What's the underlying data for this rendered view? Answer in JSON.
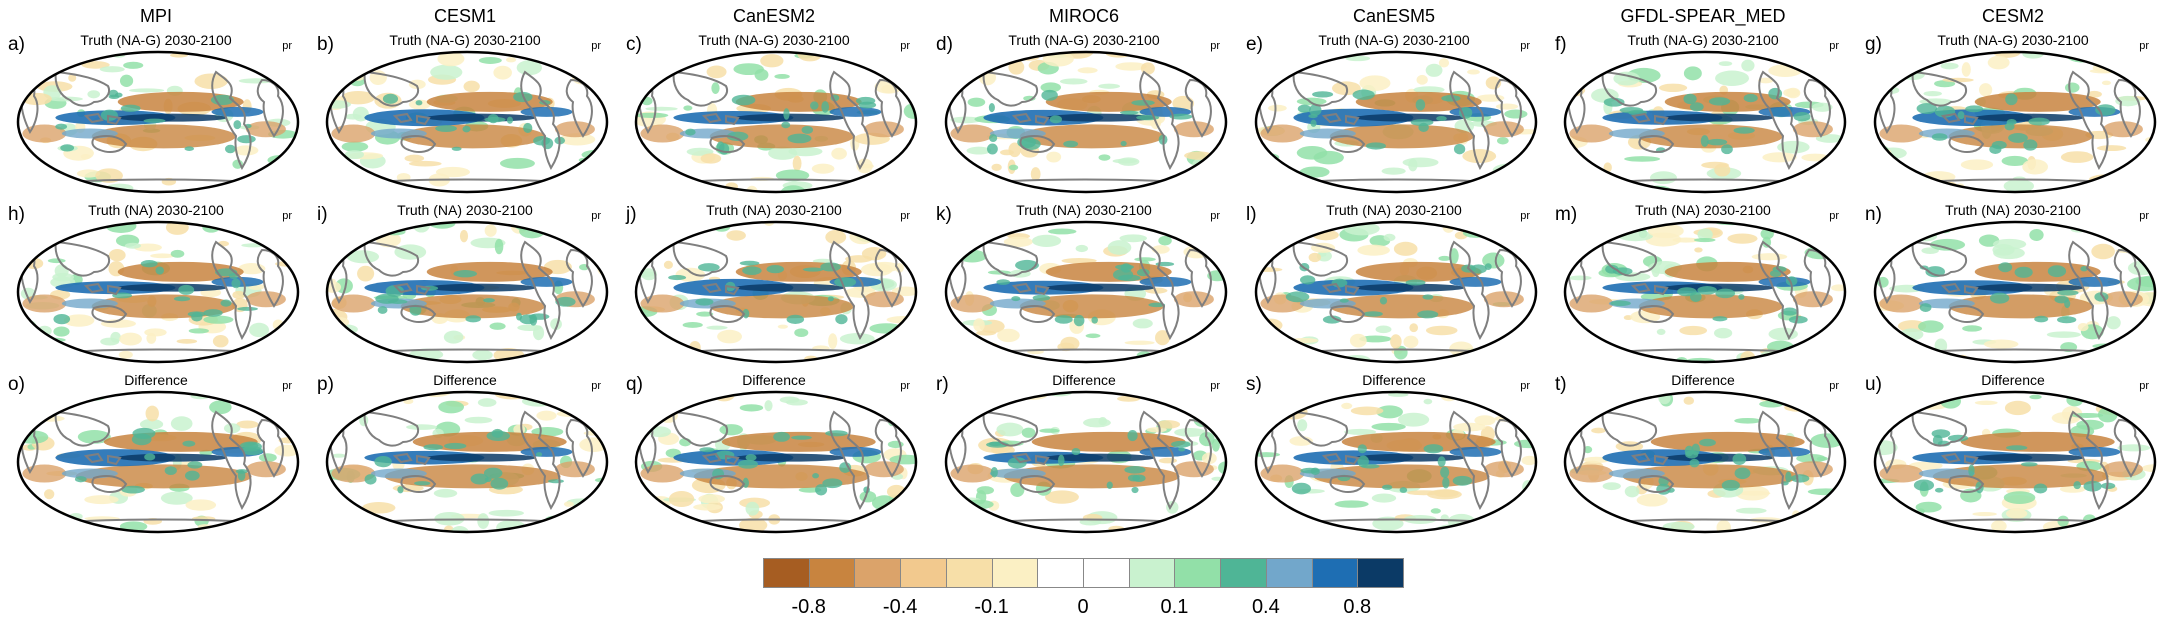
{
  "figure": {
    "variable": "pr",
    "models": [
      "MPI",
      "CESM1",
      "CanESM2",
      "MIROC6",
      "CanESM5",
      "GFDL-SPEAR_MED",
      "CESM2"
    ],
    "rows": [
      {
        "title": "Truth (NA-G) 2030-2100",
        "letters": [
          "a)",
          "b)",
          "c)",
          "d)",
          "e)",
          "f)",
          "g)"
        ]
      },
      {
        "title": "Truth (NA) 2030-2100",
        "letters": [
          "h)",
          "i)",
          "j)",
          "k)",
          "l)",
          "m)",
          "n)"
        ]
      },
      {
        "title": "Difference",
        "letters": [
          "o)",
          "p)",
          "q)",
          "r)",
          "s)",
          "t)",
          "u)"
        ]
      }
    ]
  },
  "colorbar": {
    "colors": [
      "#a65d22",
      "#c8843f",
      "#dba36a",
      "#f2c98e",
      "#f7dfa8",
      "#fbf0c4",
      "#ffffff",
      "#ffffff",
      "#c9f2cf",
      "#92e0a8",
      "#4fb596",
      "#72a7cb",
      "#1e6eb3",
      "#0b3a66"
    ],
    "ticks": [
      "-0.8",
      "-0.4",
      "-0.1",
      "0",
      "0.1",
      "0.4",
      "0.8"
    ]
  },
  "legend_colors": {
    "land_outline": "#7f7f7f",
    "frame": "#000000",
    "brown": "#c8843f",
    "blue": "#1e6eb3",
    "navy": "#0b3a66",
    "green": "#92e0a8",
    "cream": "#f7dfa8"
  }
}
